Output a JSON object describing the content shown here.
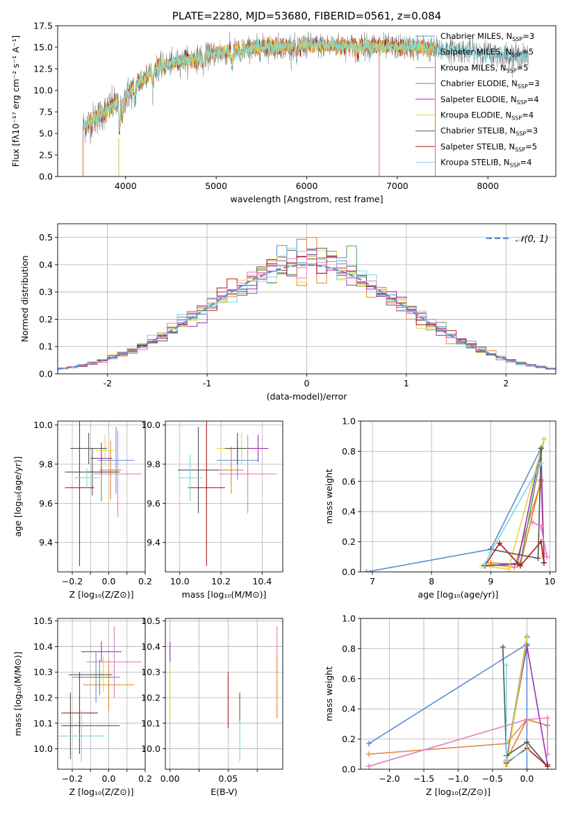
{
  "colors": {
    "Chabrier MILES": "#5b8bd6",
    "Salpeter MILES": "#e8874a",
    "Kroupa MILES": "#e08426",
    "Chabrier ELODIE": "#5a9a5a",
    "Salpeter ELODIE": "#9a30b4",
    "Kroupa ELODIE": "#e4d640",
    "Chabrier STELIB": "#555555",
    "Salpeter STELIB": "#b01818",
    "Kroupa STELIB": "#7cd8de",
    "pink": "#e37cc0",
    "gauss": "#5b8bd6",
    "spectrum_grey": "#7a7a7a"
  },
  "chart_data": [
    {
      "id": "spectrum",
      "type": "line",
      "title": "PLATE=2280, MJD=53680, FIBERID=0561, z=0.084",
      "xlabel": "wavelength [Angstrom, rest frame]",
      "ylabel": "Flux [fλ10⁻¹⁷ erg cm⁻² s⁻¹ A⁻¹]",
      "xlim": [
        3250,
        8750
      ],
      "ylim": [
        0,
        17.5
      ],
      "xticks": [
        4000,
        5000,
        6000,
        7000,
        8000
      ],
      "yticks": [
        0.0,
        2.5,
        5.0,
        7.5,
        10.0,
        12.5,
        15.0,
        17.5
      ],
      "legend": [
        {
          "label": "Chabrier MILES, N",
          "sub": "SSP",
          "suffix": "=3"
        },
        {
          "label": "Salpeter MILES, N",
          "sub": "SSP",
          "suffix": "=5"
        },
        {
          "label": "Kroupa MILES, N",
          "sub": "SSP",
          "suffix": "=5"
        },
        {
          "label": "Chabrier ELODIE, N",
          "sub": "SSP",
          "suffix": "=3"
        },
        {
          "label": "Salpeter ELODIE, N",
          "sub": "SSP",
          "suffix": "=4"
        },
        {
          "label": "Kroupa ELODIE, N",
          "sub": "SSP",
          "suffix": "=4"
        },
        {
          "label": "Chabrier STELIB, N",
          "sub": "SSP",
          "suffix": "=3"
        },
        {
          "label": "Salpeter STELIB, N",
          "sub": "SSP",
          "suffix": "=5"
        },
        {
          "label": "Kroupa STELIB, N",
          "sub": "SSP",
          "suffix": "=4"
        }
      ],
      "continuum": {
        "x": [
          3530,
          3600,
          3700,
          3800,
          3900,
          4000,
          4100,
          4200,
          4300,
          4400,
          4600,
          4800,
          5000,
          5200,
          5500,
          5800,
          6000,
          6200,
          6500,
          6800,
          7000,
          7200,
          7400,
          7600,
          7800,
          8000,
          8200,
          8450
        ],
        "y": [
          5.8,
          6.2,
          7.0,
          7.8,
          8.5,
          9.3,
          10.4,
          11.5,
          12.3,
          12.8,
          13.4,
          13.8,
          14.3,
          14.6,
          15.0,
          15.1,
          15.2,
          15.2,
          15.2,
          15.1,
          15.0,
          15.0,
          14.8,
          14.7,
          14.5,
          14.3,
          14.1,
          13.9
        ]
      },
      "absorption": [
        {
          "x": 3934,
          "depth": 3.5
        },
        {
          "x": 3969,
          "depth": 2.5
        },
        {
          "x": 4101,
          "depth": 1.5
        },
        {
          "x": 4300,
          "depth": 1.6
        },
        {
          "x": 4861,
          "depth": 1.2
        },
        {
          "x": 5175,
          "depth": 1.8
        },
        {
          "x": 5270,
          "depth": 1.0
        },
        {
          "x": 5890,
          "depth": 1.6
        },
        {
          "x": 6563,
          "depth": 1.1
        }
      ],
      "edges": [
        {
          "x": 3530
        },
        {
          "x": 3925
        },
        {
          "x": 6800
        },
        {
          "x": 7420
        }
      ]
    },
    {
      "id": "residuals",
      "type": "bar",
      "xlabel": "(data-model)/error",
      "ylabel": "Normed distribution",
      "xlim": [
        -2.5,
        2.5
      ],
      "ylim": [
        0,
        0.55
      ],
      "xticks": [
        -2,
        -1,
        0,
        1,
        2
      ],
      "yticks": [
        0.0,
        0.1,
        0.2,
        0.3,
        0.4,
        0.5
      ],
      "gauss_label": "𝒩(0, 1)",
      "bin_width": 0.1
    },
    {
      "id": "age-z",
      "type": "scatter",
      "xlabel": "Z [log₁₀(Z/Z⊙)]",
      "ylabel": "age  [log₁₀(age/yr)]",
      "xlim": [
        -0.28,
        0.2
      ],
      "ylim": [
        9.25,
        10.02
      ],
      "xticks": [
        -0.2,
        -0.1,
        0.0,
        0.1,
        0.2
      ],
      "xticklabels": [
        "−0.2",
        "",
        "0.0",
        "",
        "0.2"
      ],
      "yticks": [
        9.4,
        9.6,
        9.8,
        10.0
      ],
      "points": [
        {
          "c": "Chabrier MILES",
          "x": 0.04,
          "xe": 0.1,
          "y": 9.82,
          "ye": 0.17
        },
        {
          "c": "Kroupa MILES",
          "x": 0.01,
          "xe": 0.06,
          "y": 9.77,
          "ye": 0.15
        },
        {
          "c": "Chabrier ELODIE",
          "x": -0.04,
          "xe": 0.09,
          "y": 9.76,
          "ye": 0.15
        },
        {
          "c": "Salpeter ELODIE",
          "x": -0.04,
          "xe": 0.06,
          "y": 9.83,
          "ye": 0.08
        },
        {
          "c": "Kroupa ELODIE",
          "x": -0.02,
          "xe": 0.05,
          "y": 9.87,
          "ye": 0.08
        },
        {
          "c": "Chabrier STELIB",
          "x": -0.11,
          "xe": 0.1,
          "y": 9.88,
          "ye": 0.08
        },
        {
          "c": "Chabrier STELIB",
          "x": -0.09,
          "xe": 0.15,
          "y": 9.76,
          "ye": 0.12
        },
        {
          "c": "Salpeter STELIB",
          "x": -0.16,
          "xe": 0.08,
          "y": 9.68,
          "ye": 0.4
        },
        {
          "c": "Kroupa STELIB",
          "x": -0.12,
          "xe": 0.07,
          "y": 9.73,
          "ye": 0.05
        },
        {
          "c": "pink",
          "x": 0.05,
          "xe": 0.13,
          "y": 9.75,
          "ye": 0.22
        }
      ]
    },
    {
      "id": "age-mass",
      "type": "scatter",
      "xlabel": "mass [log₁₀(M/M⊙)]",
      "xlim": [
        9.93,
        10.5
      ],
      "ylim": [
        9.25,
        10.02
      ],
      "xticks": [
        10.0,
        10.2,
        10.4
      ],
      "xticklabels": [
        "10.0",
        "10.2",
        "10.4"
      ],
      "yticks": [
        9.4,
        9.6,
        9.8,
        10.0
      ],
      "points": [
        {
          "c": "Chabrier MILES",
          "x": 10.28,
          "xe": 0.1,
          "y": 9.82,
          "ye": 0.1
        },
        {
          "c": "Kroupa MILES",
          "x": 10.25,
          "xe": 0.06,
          "y": 9.77,
          "ye": 0.12
        },
        {
          "c": "Kroupa ELODIE",
          "x": 10.3,
          "xe": 0.12,
          "y": 9.88,
          "ye": 0.08
        },
        {
          "c": "Salpeter ELODIE",
          "x": 10.38,
          "xe": 0.05,
          "y": 9.88,
          "ye": 0.07
        },
        {
          "c": "Chabrier STELIB",
          "x": 10.09,
          "xe": 0.1,
          "y": 9.77,
          "ye": 0.22
        },
        {
          "c": "Chabrier STELIB",
          "x": 10.28,
          "xe": 0.06,
          "y": 9.88,
          "ye": 0.08
        },
        {
          "c": "Salpeter STELIB",
          "x": 10.13,
          "xe": 0.09,
          "y": 9.68,
          "ye": 0.4
        },
        {
          "c": "Kroupa STELIB",
          "x": 10.05,
          "xe": 0.06,
          "y": 9.73,
          "ye": 0.12
        },
        {
          "c": "pink",
          "x": 10.33,
          "xe": 0.14,
          "y": 9.75,
          "ye": 0.2
        }
      ]
    },
    {
      "id": "mw-age",
      "type": "line",
      "xlabel": "age  [log₁₀(age/yr)]",
      "ylabel": "mass weight",
      "xlim": [
        6.8,
        10.1
      ],
      "ylim": [
        0,
        1.0
      ],
      "xticks": [
        7,
        8,
        9,
        10
      ],
      "yticks": [
        0.0,
        0.2,
        0.4,
        0.6,
        0.8,
        1.0
      ],
      "series": [
        {
          "c": "Chabrier MILES",
          "x": [
            6.9,
            9.0,
            9.85
          ],
          "y": [
            0.0,
            0.15,
            0.82
          ]
        },
        {
          "c": "Salpeter MILES",
          "x": [
            9.0,
            9.4,
            9.85,
            9.9
          ],
          "y": [
            0.05,
            0.03,
            0.6,
            0.12
          ]
        },
        {
          "c": "Kroupa MILES",
          "x": [
            9.0,
            9.5,
            9.85,
            9.9
          ],
          "y": [
            0.06,
            0.05,
            0.61,
            0.1
          ]
        },
        {
          "c": "Chabrier ELODIE",
          "x": [
            8.9,
            9.5,
            9.9
          ],
          "y": [
            0.04,
            0.06,
            0.88
          ]
        },
        {
          "c": "Salpeter ELODIE",
          "x": [
            8.9,
            9.45,
            9.85,
            9.9
          ],
          "y": [
            0.04,
            0.05,
            0.82,
            0.06
          ]
        },
        {
          "c": "Kroupa ELODIE",
          "x": [
            8.85,
            9.3,
            9.9
          ],
          "y": [
            0.04,
            0.02,
            0.88
          ]
        },
        {
          "c": "Chabrier STELIB",
          "x": [
            9.0,
            9.8,
            9.85
          ],
          "y": [
            0.15,
            0.09,
            0.82
          ]
        },
        {
          "c": "Salpeter STELIB",
          "x": [
            8.9,
            9.15,
            9.5,
            9.85,
            9.9
          ],
          "y": [
            0.04,
            0.19,
            0.04,
            0.2,
            0.06
          ]
        },
        {
          "c": "Kroupa STELIB",
          "x": [
            8.9,
            9.0,
            9.85
          ],
          "y": [
            0.05,
            0.13,
            0.72
          ]
        },
        {
          "c": "pink",
          "x": [
            9.7,
            9.85,
            9.95
          ],
          "y": [
            0.33,
            0.3,
            0.1
          ]
        }
      ]
    },
    {
      "id": "mass-z",
      "type": "scatter",
      "xlabel": "Z [log₁₀(Z/Z⊙)]",
      "ylabel": "mass [log₁₀(M/M⊙)]",
      "xlim": [
        -0.28,
        0.2
      ],
      "ylim": [
        9.92,
        10.51
      ],
      "xticks": [
        -0.2,
        -0.1,
        0.0,
        0.1,
        0.2
      ],
      "xticklabels": [
        "−0.2",
        "",
        "0.0",
        "",
        "0.2"
      ],
      "yticks": [
        10.0,
        10.1,
        10.2,
        10.3,
        10.4,
        10.5
      ],
      "points": [
        {
          "c": "Chabrier MILES",
          "x": -0.07,
          "xe": 0.13,
          "y": 10.28,
          "ye": 0.1
        },
        {
          "c": "Kroupa MILES",
          "x": 0.0,
          "xe": 0.14,
          "y": 10.25,
          "ye": 0.1
        },
        {
          "c": "Chabrier ELODIE",
          "x": -0.05,
          "xe": 0.07,
          "y": 10.28,
          "ye": 0.07
        },
        {
          "c": "Salpeter ELODIE",
          "x": -0.04,
          "xe": 0.11,
          "y": 10.38,
          "ye": 0.04
        },
        {
          "c": "Kroupa ELODIE",
          "x": -0.03,
          "xe": 0.04,
          "y": 10.29,
          "ye": 0.07
        },
        {
          "c": "Chabrier STELIB",
          "x": -0.21,
          "xe": 0.05,
          "y": 10.09,
          "ye": 0.13
        },
        {
          "c": "Chabrier STELIB",
          "x": -0.09,
          "xe": 0.15,
          "y": 10.09,
          "ye": 0.0
        },
        {
          "c": "Chabrier STELIB",
          "x": -0.1,
          "xe": 0.12,
          "y": 10.29,
          "ye": 0.0
        },
        {
          "c": "Salpeter STELIB",
          "x": -0.16,
          "xe": 0.1,
          "y": 10.14,
          "ye": 0.16
        },
        {
          "c": "Kroupa STELIB",
          "x": -0.15,
          "xe": 0.13,
          "y": 10.05,
          "ye": 0.1
        },
        {
          "c": "pink",
          "x": 0.03,
          "xe": 0.15,
          "y": 10.34,
          "ye": 0.14
        }
      ]
    },
    {
      "id": "mass-ebv",
      "type": "scatter",
      "xlabel": "E(B-V)",
      "xlim": [
        -0.004,
        0.097
      ],
      "ylim": [
        9.92,
        10.51
      ],
      "xticks": [
        0.0,
        0.025,
        0.05,
        0.075
      ],
      "xticklabels": [
        "0.00",
        "",
        "0.05",
        ""
      ],
      "yticks": [
        10.0,
        10.1,
        10.2,
        10.3,
        10.4,
        10.5
      ],
      "points": [
        {
          "c": "Salpeter ELODIE",
          "x": 0.0,
          "xe": 0,
          "y": 10.38,
          "ye": 0.04
        },
        {
          "c": "Kroupa ELODIE",
          "x": 0.0,
          "xe": 0,
          "y": 10.22,
          "ye": 0.11
        },
        {
          "c": "Salpeter STELIB",
          "x": 0.05,
          "xe": 0,
          "y": 10.19,
          "ye": 0.11
        },
        {
          "c": "Chabrier STELIB",
          "x": 0.06,
          "xe": 0,
          "y": 10.16,
          "ye": 0.06
        },
        {
          "c": "Kroupa STELIB",
          "x": 0.06,
          "xe": 0,
          "y": 10.03,
          "ye": 0.08
        },
        {
          "c": "Kroupa MILES",
          "x": 0.092,
          "xe": 0,
          "y": 10.24,
          "ye": 0.12
        },
        {
          "c": "pink",
          "x": 0.092,
          "xe": 0,
          "y": 10.42,
          "ye": 0.06
        }
      ]
    },
    {
      "id": "mw-z",
      "type": "line",
      "xlabel": "Z [log₁₀(Z/Z⊙)]",
      "ylabel": "mass weight",
      "xlim": [
        -2.42,
        0.42
      ],
      "ylim": [
        0,
        1.0
      ],
      "xticks": [
        -2.0,
        -1.5,
        -1.0,
        -0.5,
        0.0
      ],
      "xticklabels": [
        "−2.0",
        "−1.5",
        "−1.0",
        "−0.5",
        "0.0"
      ],
      "yticks": [
        0.0,
        0.2,
        0.4,
        0.6,
        0.8,
        1.0
      ],
      "series": [
        {
          "c": "Chabrier MILES",
          "x": [
            -2.3,
            0.0,
            0.0
          ],
          "y": [
            0.17,
            0.83,
            0.0
          ]
        },
        {
          "c": "Salpeter MILES",
          "x": [
            -2.3,
            -0.3,
            0.0,
            0.3
          ],
          "y": [
            0.1,
            0.17,
            0.33,
            0.29
          ]
        },
        {
          "c": "Kroupa MILES",
          "x": [
            -0.3,
            0.0,
            0.3
          ],
          "y": [
            0.06,
            0.33,
            0.29
          ]
        },
        {
          "c": "Chabrier ELODIE",
          "x": [
            -0.3,
            -0.3,
            0.0
          ],
          "y": [
            0.05,
            0.05,
            0.88
          ]
        },
        {
          "c": "Salpeter ELODIE",
          "x": [
            -0.3,
            0.0,
            0.3
          ],
          "y": [
            0.05,
            0.82,
            0.03
          ]
        },
        {
          "c": "Kroupa ELODIE",
          "x": [
            -0.3,
            -0.3,
            0.0
          ],
          "y": [
            0.02,
            0.02,
            0.87
          ]
        },
        {
          "c": "Chabrier STELIB",
          "x": [
            -0.35,
            -0.3,
            0.0,
            0.3
          ],
          "y": [
            0.81,
            0.09,
            0.18,
            0.02
          ]
        },
        {
          "c": "Salpeter STELIB",
          "x": [
            -0.3,
            0.0,
            0.3
          ],
          "y": [
            0.04,
            0.14,
            0.02
          ]
        },
        {
          "c": "Kroupa STELIB",
          "x": [
            -0.3,
            -0.3,
            0.0
          ],
          "y": [
            0.69,
            0.05,
            0.13
          ]
        },
        {
          "c": "pink",
          "x": [
            -2.3,
            0.0,
            0.3,
            0.3
          ],
          "y": [
            0.02,
            0.33,
            0.34,
            0.1
          ]
        }
      ]
    }
  ]
}
